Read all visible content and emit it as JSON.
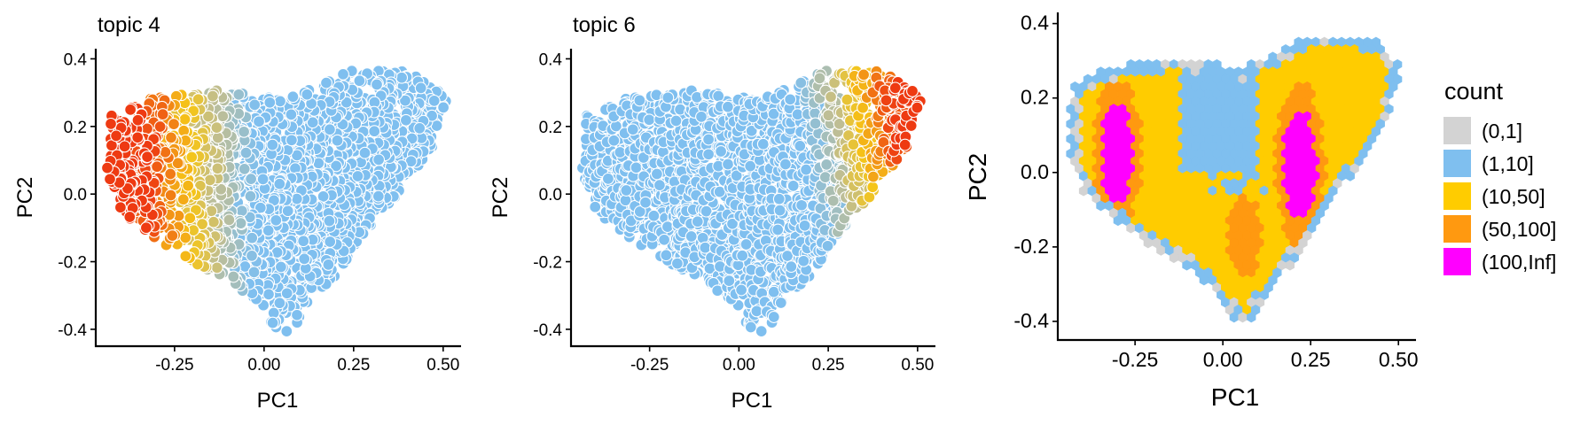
{
  "colors": {
    "palette_low": "#7fbfef",
    "palette_mid": "#f5c518",
    "palette_high": "#ee3a12",
    "point_outline": "#ffffff"
  },
  "chart_data": [
    {
      "type": "scatter",
      "title": "topic 4",
      "xlabel": "PC1",
      "ylabel": "PC2",
      "xlim": [
        -0.47,
        0.55
      ],
      "ylim": [
        -0.45,
        0.43
      ],
      "x_ticks": [
        "-0.25",
        "0.00",
        "0.25",
        "0.50"
      ],
      "y_ticks": [
        "-0.4",
        "-0.2",
        "0.0",
        "0.2",
        "0.4"
      ],
      "x_tick_values": [
        -0.25,
        0,
        0.25,
        0.5
      ],
      "y_tick_values": [
        -0.4,
        -0.2,
        0,
        0.2,
        0.4
      ],
      "color_gradient": "high at left (PC1 ≈ -0.45), low at right",
      "grid": false
    },
    {
      "type": "scatter",
      "title": "topic 6",
      "xlabel": "PC1",
      "ylabel": "PC2",
      "xlim": [
        -0.47,
        0.55
      ],
      "ylim": [
        -0.45,
        0.43
      ],
      "x_ticks": [
        "-0.25",
        "0.00",
        "0.25",
        "0.50"
      ],
      "y_ticks": [
        "-0.4",
        "-0.2",
        "0.0",
        "0.2",
        "0.4"
      ],
      "x_tick_values": [
        -0.25,
        0,
        0.25,
        0.5
      ],
      "y_tick_values": [
        -0.4,
        -0.2,
        0,
        0.2,
        0.4
      ],
      "color_gradient": "high at right (PC1 ≈ 0.5), low at left",
      "grid": false
    },
    {
      "type": "heatmap",
      "title": "",
      "xlabel": "PC1",
      "ylabel": "PC2",
      "xlim": [
        -0.47,
        0.55
      ],
      "ylim": [
        -0.45,
        0.43
      ],
      "x_ticks": [
        "-0.25",
        "0.00",
        "0.25",
        "0.50"
      ],
      "y_ticks": [
        "-0.4",
        "-0.2",
        "0.0",
        "0.2",
        "0.4"
      ],
      "x_tick_values": [
        -0.25,
        0,
        0.25,
        0.5
      ],
      "y_tick_values": [
        -0.4,
        -0.2,
        0,
        0.2,
        0.4
      ],
      "grid": false,
      "legend": {
        "title": "count",
        "placement": "right",
        "entries": [
          {
            "label": "(0,1]",
            "color": "#d3d3d3"
          },
          {
            "label": "(1,10]",
            "color": "#7fbfef"
          },
          {
            "label": "(10,50]",
            "color": "#ffcc00"
          },
          {
            "label": "(50,100]",
            "color": "#ff9910"
          },
          {
            "label": "(100,Inf]",
            "color": "#ff00ff"
          }
        ]
      }
    }
  ]
}
